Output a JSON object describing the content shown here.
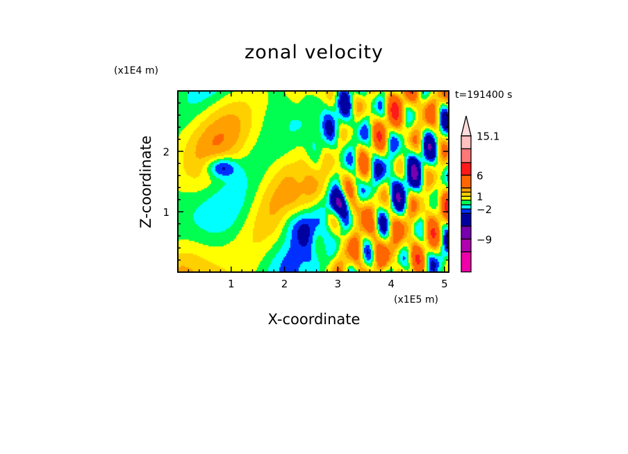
{
  "chart_data": {
    "type": "heatmap",
    "title": "zonal velocity",
    "xlabel": "X-coordinate",
    "ylabel": "Z-coordinate",
    "x_unit": "(x1E5 m)",
    "y_unit": "(x1E4 m)",
    "time_label": "t=191400 s",
    "xlim": [
      0,
      5.08
    ],
    "ylim": [
      0,
      3.0
    ],
    "x_ticks": [
      "1",
      "2",
      "3",
      "4",
      "5"
    ],
    "y_ticks": [
      "1",
      "2"
    ],
    "colorbar": {
      "levels": [
        -15,
        -12,
        -9,
        -6,
        -3,
        -2,
        -1,
        0,
        1,
        2,
        3,
        6,
        9,
        12,
        15.1
      ],
      "colors": [
        "#f000a8",
        "#b000b0",
        "#7800b0",
        "#0000a0",
        "#0030ff",
        "#00ffff",
        "#00ff50",
        "#ffff00",
        "#ffd000",
        "#ffa000",
        "#ff6600",
        "#ff1a1a",
        "#ff7878",
        "#ffc0c0"
      ],
      "extend_color": "#ffdcdc",
      "labels": [
        {
          "text": "15.1",
          "value": 15.1
        },
        {
          "text": "6",
          "value": 6
        },
        {
          "text": "1",
          "value": 1
        },
        {
          "text": "−2",
          "value": -2
        },
        {
          "text": "−9",
          "value": -9
        }
      ]
    }
  }
}
